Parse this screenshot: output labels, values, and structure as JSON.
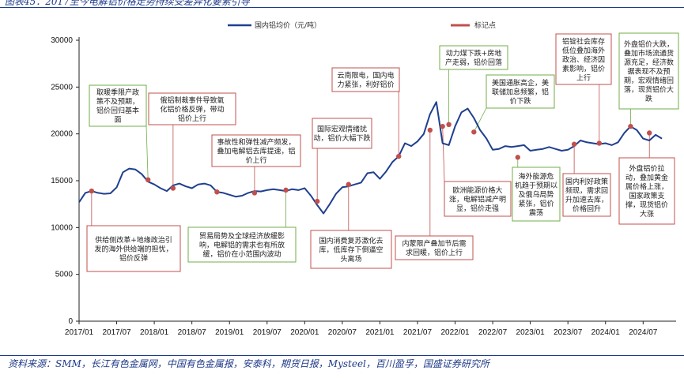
{
  "header": {
    "title": "图表45：2017至今电解铝价格走势持续受差异化要素引导"
  },
  "footer": {
    "source": "资料来源：SMM，长江有色金属网，中国有色金属报，安泰科，期货日报，Mysteel，百川盈孚，国盛证券研究所"
  },
  "colors": {
    "line": "#1f3f8f",
    "marker": "#c0504d",
    "green_box": "#70ad47",
    "red_box": "#c0504d"
  },
  "chart_data": {
    "type": "line",
    "x_tick_labels": [
      "2017/01",
      "2017/07",
      "2018/01",
      "2018/07",
      "2019/01",
      "2019/07",
      "2020/01",
      "2020/07",
      "2021/01",
      "2021/07",
      "2022/01",
      "2022/07",
      "2023/01",
      "2023/07",
      "2024/01",
      "2024/07"
    ],
    "ylim": [
      0,
      30000
    ],
    "y_ticks": [
      0,
      5000,
      10000,
      15000,
      20000,
      25000,
      30000
    ],
    "legend": {
      "line": "国内铝均价（元/吨）",
      "marker": "标记点",
      "placement": "top"
    },
    "series": [
      {
        "name": "国内铝均价（元/吨）",
        "points": [
          [
            "2017-01",
            12700
          ],
          [
            "2017-02",
            13700
          ],
          [
            "2017-03",
            13900
          ],
          [
            "2017-04",
            13700
          ],
          [
            "2017-05",
            13600
          ],
          [
            "2017-06",
            13650
          ],
          [
            "2017-07",
            14300
          ],
          [
            "2017-08",
            15900
          ],
          [
            "2017-09",
            16300
          ],
          [
            "2017-10",
            16200
          ],
          [
            "2017-11",
            15700
          ],
          [
            "2017-12",
            14900
          ],
          [
            "2018-01",
            14600
          ],
          [
            "2018-02",
            14200
          ],
          [
            "2018-03",
            13900
          ],
          [
            "2018-04",
            14500
          ],
          [
            "2018-05",
            14700
          ],
          [
            "2018-06",
            14400
          ],
          [
            "2018-07",
            14200
          ],
          [
            "2018-08",
            14600
          ],
          [
            "2018-09",
            14700
          ],
          [
            "2018-10",
            14500
          ],
          [
            "2018-11",
            13800
          ],
          [
            "2018-12",
            13700
          ],
          [
            "2019-01",
            13500
          ],
          [
            "2019-02",
            13300
          ],
          [
            "2019-03",
            13400
          ],
          [
            "2019-04",
            13700
          ],
          [
            "2019-05",
            13900
          ],
          [
            "2019-06",
            13850
          ],
          [
            "2019-07",
            14000
          ],
          [
            "2019-08",
            14100
          ],
          [
            "2019-09",
            14000
          ],
          [
            "2019-10",
            13900
          ],
          [
            "2019-11",
            14100
          ],
          [
            "2019-12",
            14000
          ],
          [
            "2020-01",
            14200
          ],
          [
            "2020-02",
            13400
          ],
          [
            "2020-03",
            12400
          ],
          [
            "2020-04",
            11500
          ],
          [
            "2020-05",
            12500
          ],
          [
            "2020-06",
            13600
          ],
          [
            "2020-07",
            14300
          ],
          [
            "2020-08",
            14400
          ],
          [
            "2020-09",
            14600
          ],
          [
            "2020-10",
            14800
          ],
          [
            "2020-11",
            15800
          ],
          [
            "2020-12",
            15900
          ],
          [
            "2021-01",
            15200
          ],
          [
            "2021-02",
            16000
          ],
          [
            "2021-03",
            17000
          ],
          [
            "2021-04",
            17600
          ],
          [
            "2021-05",
            19000
          ],
          [
            "2021-06",
            18700
          ],
          [
            "2021-07",
            19200
          ],
          [
            "2021-08",
            20000
          ],
          [
            "2021-09",
            22100
          ],
          [
            "2021-10",
            23400
          ],
          [
            "2021-11",
            19000
          ],
          [
            "2021-12",
            18800
          ],
          [
            "2022-01",
            20800
          ],
          [
            "2022-02",
            22300
          ],
          [
            "2022-03",
            22700
          ],
          [
            "2022-04",
            21700
          ],
          [
            "2022-05",
            20400
          ],
          [
            "2022-06",
            19500
          ],
          [
            "2022-07",
            18300
          ],
          [
            "2022-08",
            18400
          ],
          [
            "2022-09",
            18700
          ],
          [
            "2022-10",
            18600
          ],
          [
            "2022-11",
            18700
          ],
          [
            "2022-12",
            18800
          ],
          [
            "2023-01",
            18200
          ],
          [
            "2023-02",
            18300
          ],
          [
            "2023-03",
            18400
          ],
          [
            "2023-04",
            18600
          ],
          [
            "2023-05",
            18400
          ],
          [
            "2023-06",
            18200
          ],
          [
            "2023-07",
            18300
          ],
          [
            "2023-08",
            18700
          ],
          [
            "2023-09",
            19300
          ],
          [
            "2023-10",
            19100
          ],
          [
            "2023-11",
            19000
          ],
          [
            "2023-12",
            18900
          ],
          [
            "2024-01",
            19000
          ],
          [
            "2024-02",
            18800
          ],
          [
            "2024-03",
            19100
          ],
          [
            "2024-04",
            20100
          ],
          [
            "2024-05",
            20800
          ],
          [
            "2024-06",
            20400
          ],
          [
            "2024-07",
            19500
          ],
          [
            "2024-08",
            19300
          ],
          [
            "2024-09",
            19900
          ],
          [
            "2024-10",
            19500
          ]
        ]
      }
    ],
    "markers": [
      [
        "2017-03",
        13900
      ],
      [
        "2017-12",
        15100
      ],
      [
        "2018-04",
        14200
      ],
      [
        "2018-11",
        13800
      ],
      [
        "2019-05",
        13700
      ],
      [
        "2019-10",
        14000
      ],
      [
        "2020-03",
        12800
      ],
      [
        "2020-08",
        14600
      ],
      [
        "2021-04",
        17600
      ],
      [
        "2021-09",
        20400
      ],
      [
        "2021-11",
        20800
      ],
      [
        "2021-12",
        21000
      ],
      [
        "2022-04",
        20200
      ],
      [
        "2022-11",
        17500
      ],
      [
        "2023-08",
        18900
      ],
      [
        "2023-12",
        19000
      ],
      [
        "2024-05",
        20800
      ],
      [
        "2024-08",
        20100
      ]
    ],
    "annotations": [
      {
        "lines": [
          "取暖季限产政",
          "策不及预期，",
          "铝价回归基本",
          "面"
        ],
        "style": "green"
      },
      {
        "lines": [
          "俄铝制裁事件导致氧",
          "化铝价格反弹，带动",
          "铝价上行"
        ],
        "style": "red"
      },
      {
        "lines": [
          "事故性和弹性减产频发，",
          "叠加电解铝去库提速，铝",
          "价上行"
        ],
        "style": "red"
      },
      {
        "lines": [
          "国际宏观情绪扰",
          "动，铝价大幅下跌"
        ],
        "style": "red"
      },
      {
        "lines": [
          "云南限电，国内电",
          "力紧张，利好铝价"
        ],
        "style": "red"
      },
      {
        "lines": [
          "动力煤下跌+房地",
          "产走弱，铝价回落"
        ],
        "style": "green"
      },
      {
        "lines": [
          "美国通胀高企，美",
          "联储加息频繁，铝",
          "价下跌"
        ],
        "style": "green"
      },
      {
        "lines": [
          "铝锭社会库存",
          "低位叠加海外",
          "政治、经济因",
          "素影响，铝价",
          "上行"
        ],
        "style": "red"
      },
      {
        "lines": [
          "外盘铝价大跌，",
          "叠加市场流通货",
          "源充足，经济数",
          "据表现不及预",
          "期，宏观情绪回",
          "落，现货铝价大",
          "跌"
        ],
        "style": "green"
      },
      {
        "lines": [
          "供给侧改革+地缘政治引",
          "发的海外供给端的担忧，",
          "铝价反弹"
        ],
        "style": "red"
      },
      {
        "lines": [
          "贸易局势及全球经济放缓影",
          "响，电解铝的需求也有所放",
          "缓，铝价在小范围内波动"
        ],
        "style": "green"
      },
      {
        "lines": [
          "国内消费复苏激化去",
          "库，低库存下倒逼空",
          "头离场"
        ],
        "style": "red"
      },
      {
        "lines": [
          "内蒙限产叠加节后需",
          "求回暖，铝价上行"
        ],
        "style": "red"
      },
      {
        "lines": [
          "欧洲能源价格大",
          "涨，电解铝减产明",
          "显，铝价走强"
        ],
        "style": "red"
      },
      {
        "lines": [
          "海外能源危",
          "机趋于预期以",
          "及俄乌局势",
          "紧张，铝价",
          "震荡"
        ],
        "style": "green"
      },
      {
        "lines": [
          "国内利好政策",
          "频现，需求回",
          "升加速去库，",
          "价格回升"
        ],
        "style": "red"
      },
      {
        "lines": [
          "外盘铝价拉",
          "动，叠加黄金",
          "属价格上涨，",
          "国家政策支",
          "撑，现货铝价",
          "大涨"
        ],
        "style": "red"
      }
    ]
  }
}
